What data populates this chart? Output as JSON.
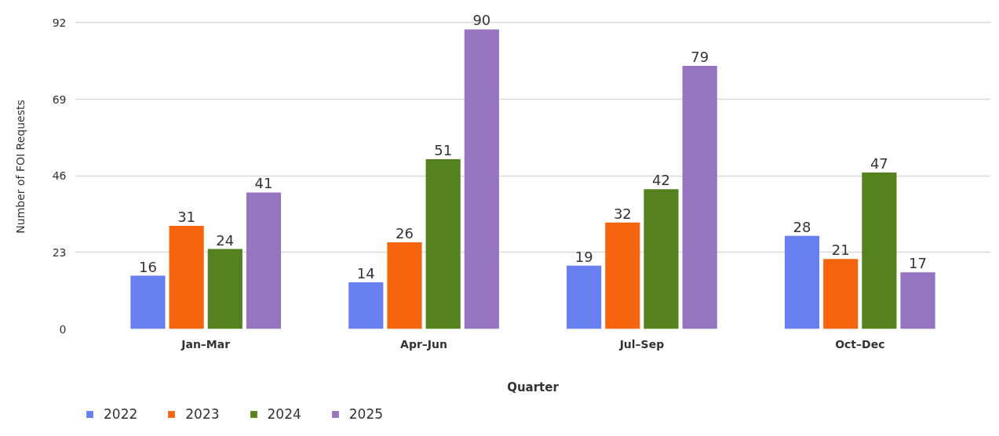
{
  "chart_data": {
    "type": "bar",
    "xlabel": "Quarter",
    "ylabel": "Number of FOI Requests",
    "categories": [
      "Jan–Mar",
      "Apr–Jun",
      "Jul–Sep",
      "Oct–Dec"
    ],
    "series": [
      {
        "name": "2022",
        "color": "#687ff0",
        "values": [
          16,
          14,
          19,
          28
        ]
      },
      {
        "name": "2023",
        "color": "#f5650f",
        "values": [
          31,
          26,
          32,
          21
        ]
      },
      {
        "name": "2024",
        "color": "#56811f",
        "values": [
          24,
          51,
          42,
          47
        ]
      },
      {
        "name": "2025",
        "color": "#9574c0",
        "values": [
          41,
          90,
          79,
          17
        ]
      }
    ],
    "ylim": [
      0,
      92
    ],
    "yticks": [
      0,
      23,
      46,
      69,
      92
    ],
    "grid": "y",
    "legend": "bottom",
    "data_labels": true
  }
}
